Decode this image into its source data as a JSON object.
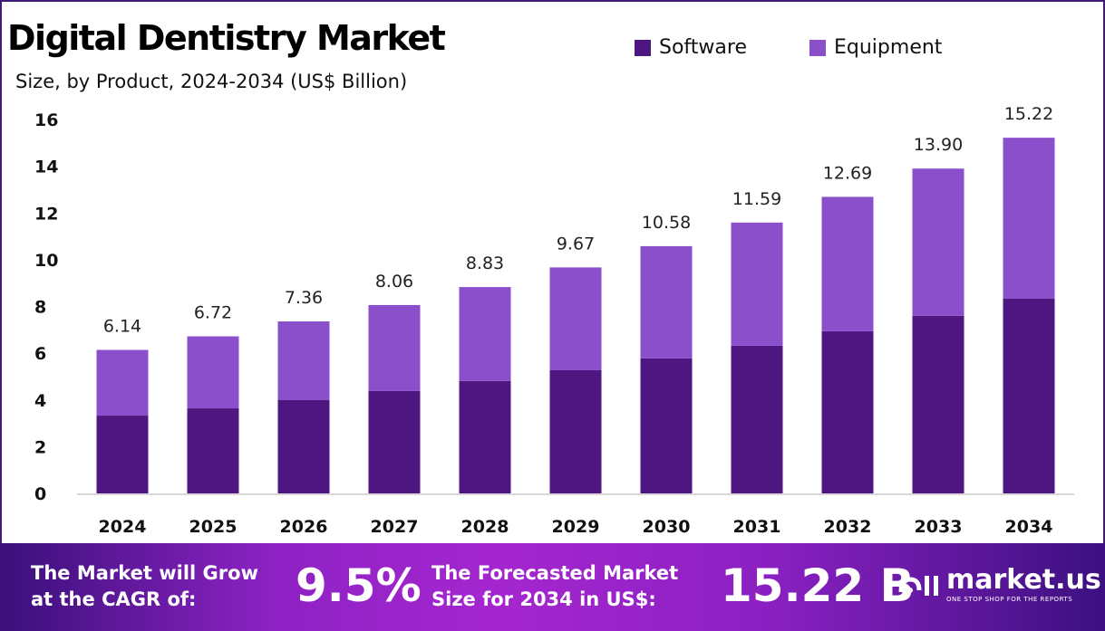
{
  "chart_data": {
    "type": "bar",
    "stacked": true,
    "title": "Digital Dentistry Market",
    "subtitle": "Size, by Product, 2024-2034 (US$ Billion)",
    "categories": [
      "2024",
      "2025",
      "2026",
      "2027",
      "2028",
      "2029",
      "2030",
      "2031",
      "2032",
      "2033",
      "2034"
    ],
    "series": [
      {
        "name": "Software",
        "color": "#4d1680",
        "values": [
          3.33,
          3.64,
          3.99,
          4.38,
          4.81,
          5.27,
          5.78,
          6.32,
          6.94,
          7.6,
          8.33
        ]
      },
      {
        "name": "Equipment",
        "color": "#8b4fcc",
        "values": [
          2.81,
          3.08,
          3.37,
          3.68,
          4.02,
          4.4,
          4.8,
          5.27,
          5.75,
          6.3,
          6.89
        ]
      }
    ],
    "totals": [
      "6.14",
      "6.72",
      "7.36",
      "8.06",
      "8.83",
      "9.67",
      "10.58",
      "11.59",
      "12.69",
      "13.90",
      "15.22"
    ],
    "yticks": [
      "0",
      "2",
      "4",
      "6",
      "8",
      "10",
      "12",
      "14",
      "16"
    ],
    "ylim": [
      0,
      16
    ],
    "grid": false,
    "legend_position": "top-right"
  },
  "banner": {
    "cagr_label_1": "The Market will Grow",
    "cagr_label_2": "at the CAGR of:",
    "cagr_value": "9.5%",
    "forecast_label_1": "The Forecasted Market",
    "forecast_label_2": "Size for 2034 in US$:",
    "forecast_value": "15.22 B",
    "logo_text": "market.us",
    "logo_tagline": "ONE STOP SHOP FOR THE REPORTS"
  }
}
